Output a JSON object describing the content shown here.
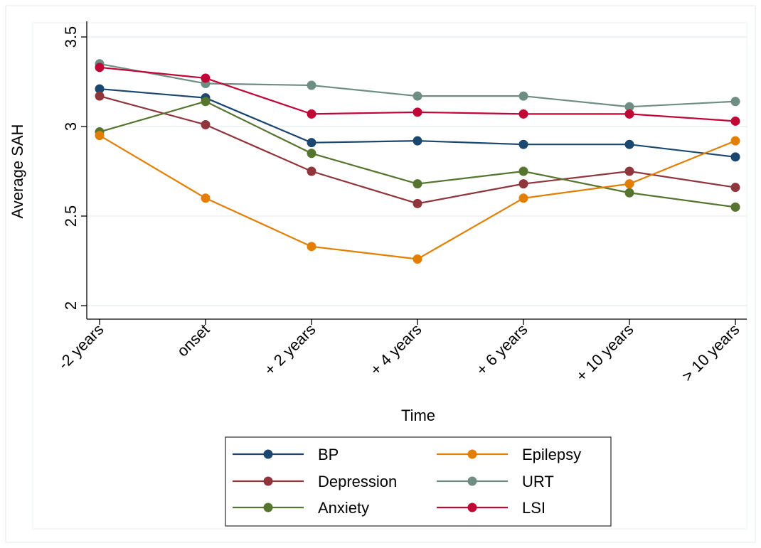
{
  "chart_data": {
    "type": "line",
    "xlabel": "Time",
    "ylabel": "Average SAH",
    "categories": [
      "-2 years",
      "onset",
      "+ 2 years",
      "+ 4 years",
      "+ 6 years",
      "+ 10 years",
      "> 10 years"
    ],
    "ylim": [
      2,
      3.5
    ],
    "yticks": [
      2,
      2.5,
      3,
      3.5
    ],
    "ytick_labels": [
      "2",
      "2.5",
      "3",
      "3.5"
    ],
    "grid": true,
    "legend_position": "bottom",
    "series": [
      {
        "name": "BP",
        "color": "#1a476f",
        "values": [
          3.21,
          3.16,
          2.91,
          2.92,
          2.9,
          2.9,
          2.83
        ]
      },
      {
        "name": "Depression",
        "color": "#90353b",
        "values": [
          3.17,
          3.01,
          2.75,
          2.57,
          2.68,
          2.75,
          2.66
        ]
      },
      {
        "name": "Anxiety",
        "color": "#55752f",
        "values": [
          2.97,
          3.14,
          2.85,
          2.68,
          2.75,
          2.63,
          2.55
        ]
      },
      {
        "name": "Epilepsy",
        "color": "#e37e00",
        "values": [
          2.95,
          2.6,
          2.33,
          2.26,
          2.6,
          2.68,
          2.92
        ]
      },
      {
        "name": "URT",
        "color": "#6e8e84",
        "values": [
          3.35,
          3.24,
          3.23,
          3.17,
          3.17,
          3.11,
          3.14
        ]
      },
      {
        "name": "LSI",
        "color": "#c10534",
        "values": [
          3.33,
          3.27,
          3.07,
          3.08,
          3.07,
          3.07,
          3.03
        ]
      }
    ]
  }
}
